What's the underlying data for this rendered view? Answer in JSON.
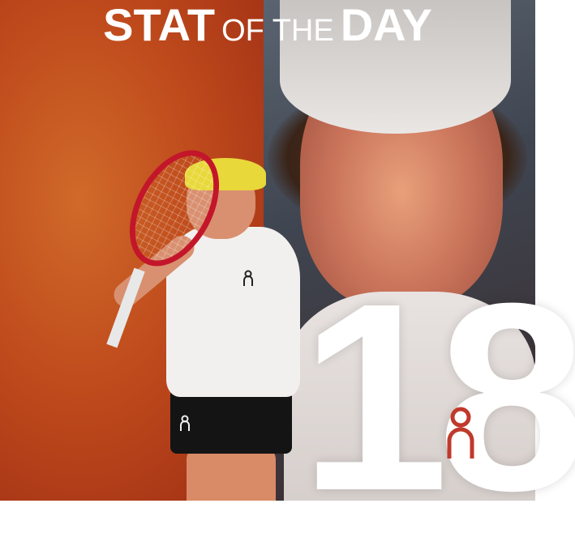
{
  "title": {
    "part1": "STAT",
    "part2": "OF THE",
    "part3": "DAY"
  },
  "stat_value": "18",
  "brand_logo": "On",
  "colors": {
    "left_bg": "#c2431a",
    "right_bg": "#3f4550",
    "text": "#ffffff",
    "cap_yellow": "#e8d83a",
    "racket_red": "#c3162a"
  }
}
